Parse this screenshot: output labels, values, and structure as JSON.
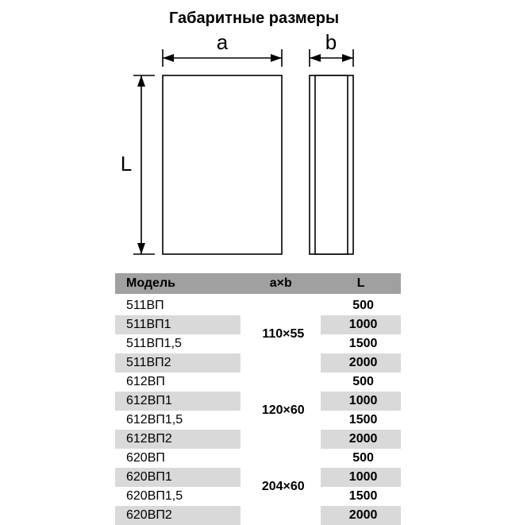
{
  "title": "Габаритные размеры",
  "dimensions": {
    "a_label": "a",
    "b_label": "b",
    "L_label": "L"
  },
  "colors": {
    "stroke": "#000000",
    "fill_light": "#ffffff",
    "header_bg": "#a0a0a0",
    "row_band": "#d9d9d9"
  },
  "table": {
    "headers": {
      "model": "Модель",
      "ab": "a×b",
      "l": "L"
    },
    "groups": [
      {
        "ab": "110×55",
        "rows": [
          {
            "model": "511ВП",
            "l": "500"
          },
          {
            "model": "511ВП1",
            "l": "1000"
          },
          {
            "model": "511ВП1,5",
            "l": "1500"
          },
          {
            "model": "511ВП2",
            "l": "2000"
          }
        ]
      },
      {
        "ab": "120×60",
        "rows": [
          {
            "model": "612ВП",
            "l": "500"
          },
          {
            "model": "612ВП1",
            "l": "1000"
          },
          {
            "model": "612ВП1,5",
            "l": "1500"
          },
          {
            "model": "612ВП2",
            "l": "2000"
          }
        ]
      },
      {
        "ab": "204×60",
        "rows": [
          {
            "model": "620ВП",
            "l": "500"
          },
          {
            "model": "620ВП1",
            "l": "1000"
          },
          {
            "model": "620ВП1,5",
            "l": "1500"
          },
          {
            "model": "620ВП2",
            "l": "2000"
          }
        ]
      }
    ]
  }
}
